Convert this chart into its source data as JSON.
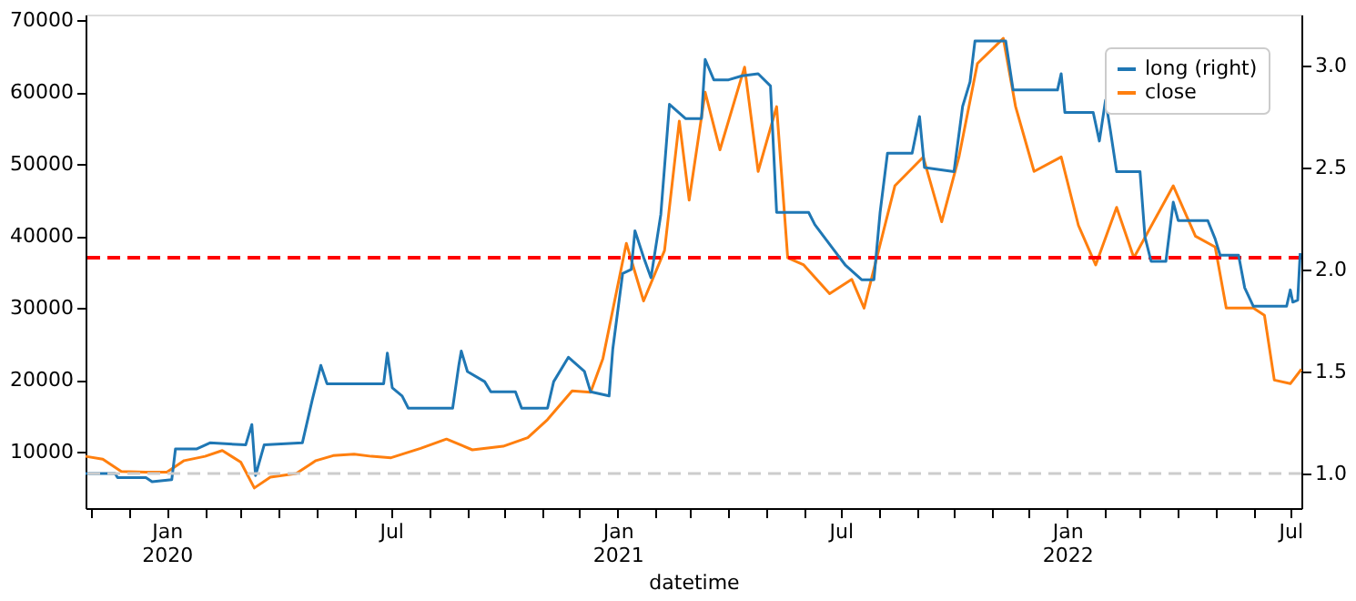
{
  "chart_data": {
    "type": "line",
    "xlabel": "datetime",
    "xlim": [
      "2019-10-27",
      "2022-07-10"
    ],
    "xticks": [
      {
        "value": "2019-11-01",
        "label": null
      },
      {
        "value": "2019-12-01",
        "label": null
      },
      {
        "value": "2020-01-01",
        "label": "Jan 2020"
      },
      {
        "value": "2020-02-01",
        "label": null
      },
      {
        "value": "2020-03-01",
        "label": null
      },
      {
        "value": "2020-04-01",
        "label": null
      },
      {
        "value": "2020-05-01",
        "label": null
      },
      {
        "value": "2020-06-01",
        "label": null
      },
      {
        "value": "2020-07-01",
        "label": "Jul"
      },
      {
        "value": "2020-08-01",
        "label": null
      },
      {
        "value": "2020-09-01",
        "label": null
      },
      {
        "value": "2020-10-01",
        "label": null
      },
      {
        "value": "2020-11-01",
        "label": null
      },
      {
        "value": "2020-12-01",
        "label": null
      },
      {
        "value": "2021-01-01",
        "label": "Jan 2021"
      },
      {
        "value": "2021-02-01",
        "label": null
      },
      {
        "value": "2021-03-01",
        "label": null
      },
      {
        "value": "2021-04-01",
        "label": null
      },
      {
        "value": "2021-05-01",
        "label": null
      },
      {
        "value": "2021-06-01",
        "label": null
      },
      {
        "value": "2021-07-01",
        "label": "Jul"
      },
      {
        "value": "2021-08-01",
        "label": null
      },
      {
        "value": "2021-09-01",
        "label": null
      },
      {
        "value": "2021-10-01",
        "label": null
      },
      {
        "value": "2021-11-01",
        "label": null
      },
      {
        "value": "2021-12-01",
        "label": null
      },
      {
        "value": "2022-01-01",
        "label": "Jan 2022"
      },
      {
        "value": "2022-02-01",
        "label": null
      },
      {
        "value": "2022-03-01",
        "label": null
      },
      {
        "value": "2022-04-01",
        "label": null
      },
      {
        "value": "2022-05-01",
        "label": null
      },
      {
        "value": "2022-06-01",
        "label": null
      },
      {
        "value": "2022-07-01",
        "label": "Jul"
      }
    ],
    "ylim": [
      2200,
      70800
    ],
    "yticks": [
      10000,
      20000,
      30000,
      40000,
      50000,
      60000,
      70000
    ],
    "y2lim": [
      0.83,
      3.25
    ],
    "y2ticks": [
      {
        "value": 1,
        "label": "1.0"
      },
      {
        "value": 1.5,
        "label": "1.5"
      },
      {
        "value": 2,
        "label": "2.0"
      },
      {
        "value": 2.5,
        "label": "2.5"
      },
      {
        "value": 3,
        "label": "3.0"
      }
    ],
    "grid": false,
    "legend": "top right",
    "ref_lines": [
      {
        "axis": "y",
        "value": 37000,
        "color": "#ff0000",
        "line_style": "dashed"
      },
      {
        "axis": "y2",
        "value": 1,
        "color": "#cccccc",
        "line_style": "dashed"
      }
    ],
    "series": [
      {
        "name": "long (right)",
        "color": "#1f77b4",
        "axis": "y2",
        "x": [
          "2019-10-27",
          "2019-11-20",
          "2019-11-22",
          "2019-12-15",
          "2019-12-20",
          "2020-01-05",
          "2020-01-08",
          "2020-01-25",
          "2020-02-05",
          "2020-03-05",
          "2020-03-10",
          "2020-03-13",
          "2020-03-20",
          "2020-04-20",
          "2020-04-28",
          "2020-05-05",
          "2020-05-10",
          "2020-06-25",
          "2020-06-28",
          "2020-07-02",
          "2020-07-10",
          "2020-07-15",
          "2020-08-20",
          "2020-08-25",
          "2020-08-27",
          "2020-09-01",
          "2020-09-15",
          "2020-09-20",
          "2020-10-10",
          "2020-10-15",
          "2020-11-05",
          "2020-11-10",
          "2020-11-22",
          "2020-12-05",
          "2020-12-10",
          "2020-12-25",
          "2020-12-28",
          "2021-01-05",
          "2021-01-12",
          "2021-01-15",
          "2021-01-22",
          "2021-01-28",
          "2021-02-05",
          "2021-02-12",
          "2021-02-25",
          "2021-03-10",
          "2021-03-13",
          "2021-03-20",
          "2021-04-01",
          "2021-04-12",
          "2021-04-25",
          "2021-05-05",
          "2021-05-10",
          "2021-06-05",
          "2021-06-10",
          "2021-06-25",
          "2021-07-05",
          "2021-07-18",
          "2021-07-28",
          "2021-08-02",
          "2021-08-08",
          "2021-08-28",
          "2021-09-03",
          "2021-09-07",
          "2021-10-01",
          "2021-10-08",
          "2021-10-14",
          "2021-10-18",
          "2021-11-12",
          "2021-11-18",
          "2021-12-24",
          "2021-12-27",
          "2021-12-30",
          "2022-01-22",
          "2022-01-27",
          "2022-02-01",
          "2022-02-05",
          "2022-02-10",
          "2022-03-01",
          "2022-03-05",
          "2022-03-10",
          "2022-03-22",
          "2022-03-28",
          "2022-04-01",
          "2022-04-25",
          "2022-05-01",
          "2022-05-05",
          "2022-05-20",
          "2022-05-25",
          "2022-06-01",
          "2022-06-28",
          "2022-07-01",
          "2022-07-03",
          "2022-07-07",
          "2022-07-09"
        ],
        "values": [
          1.0,
          1.0,
          0.98,
          0.98,
          0.96,
          0.97,
          1.12,
          1.12,
          1.15,
          1.14,
          1.24,
          0.99,
          1.14,
          1.15,
          1.36,
          1.53,
          1.44,
          1.44,
          1.59,
          1.42,
          1.38,
          1.32,
          1.32,
          1.53,
          1.6,
          1.5,
          1.45,
          1.4,
          1.4,
          1.32,
          1.32,
          1.45,
          1.57,
          1.5,
          1.4,
          1.38,
          1.61,
          1.98,
          2.0,
          2.19,
          2.06,
          1.96,
          2.27,
          2.81,
          2.74,
          2.74,
          3.03,
          2.93,
          2.93,
          2.95,
          2.96,
          2.9,
          2.28,
          2.28,
          2.22,
          2.1,
          2.02,
          1.95,
          1.95,
          2.28,
          2.57,
          2.57,
          2.75,
          2.5,
          2.48,
          2.8,
          2.92,
          3.12,
          3.12,
          2.88,
          2.88,
          2.96,
          2.77,
          2.77,
          2.63,
          2.83,
          2.68,
          2.48,
          2.48,
          2.16,
          2.04,
          2.04,
          2.33,
          2.24,
          2.24,
          2.15,
          2.07,
          2.07,
          1.91,
          1.82,
          1.82,
          1.9,
          1.84,
          1.85,
          2.08
        ]
      },
      {
        "name": "close",
        "color": "#ff7f0e",
        "x": [
          "2019-10-27",
          "2019-11-10",
          "2019-11-25",
          "2019-12-15",
          "2020-01-01",
          "2020-01-15",
          "2020-02-01",
          "2020-02-15",
          "2020-03-01",
          "2020-03-12",
          "2020-03-25",
          "2020-04-15",
          "2020-05-01",
          "2020-05-15",
          "2020-06-01",
          "2020-06-15",
          "2020-07-01",
          "2020-07-25",
          "2020-08-15",
          "2020-09-05",
          "2020-09-30",
          "2020-10-20",
          "2020-11-05",
          "2020-11-25",
          "2020-12-10",
          "2020-12-20",
          "2021-01-08",
          "2021-01-22",
          "2021-02-08",
          "2021-02-20",
          "2021-02-28",
          "2021-03-13",
          "2021-03-25",
          "2021-04-14",
          "2021-04-25",
          "2021-05-10",
          "2021-05-19",
          "2021-06-01",
          "2021-06-22",
          "2021-07-10",
          "2021-07-20",
          "2021-08-14",
          "2021-09-06",
          "2021-09-21",
          "2021-10-05",
          "2021-10-20",
          "2021-11-10",
          "2021-11-20",
          "2021-12-05",
          "2021-12-27",
          "2022-01-10",
          "2022-01-24",
          "2022-02-10",
          "2022-02-24",
          "2022-03-28",
          "2022-04-15",
          "2022-05-01",
          "2022-05-10",
          "2022-06-01",
          "2022-06-10",
          "2022-06-18",
          "2022-07-01",
          "2022-07-10"
        ],
        "values": [
          9400,
          9000,
          7300,
          7200,
          7200,
          8800,
          9400,
          10200,
          8600,
          5000,
          6500,
          7000,
          8800,
          9500,
          9700,
          9400,
          9200,
          10500,
          11800,
          10300,
          10800,
          12000,
          14500,
          18500,
          18300,
          23000,
          39000,
          31000,
          38000,
          56000,
          45000,
          60000,
          52000,
          63500,
          49000,
          58000,
          37000,
          36000,
          32000,
          34000,
          30000,
          47000,
          51000,
          42000,
          51000,
          64000,
          67500,
          58000,
          49000,
          51000,
          41500,
          36000,
          44000,
          37000,
          47000,
          40000,
          38500,
          30000,
          30000,
          29000,
          20000,
          19500,
          21500
        ]
      }
    ]
  }
}
